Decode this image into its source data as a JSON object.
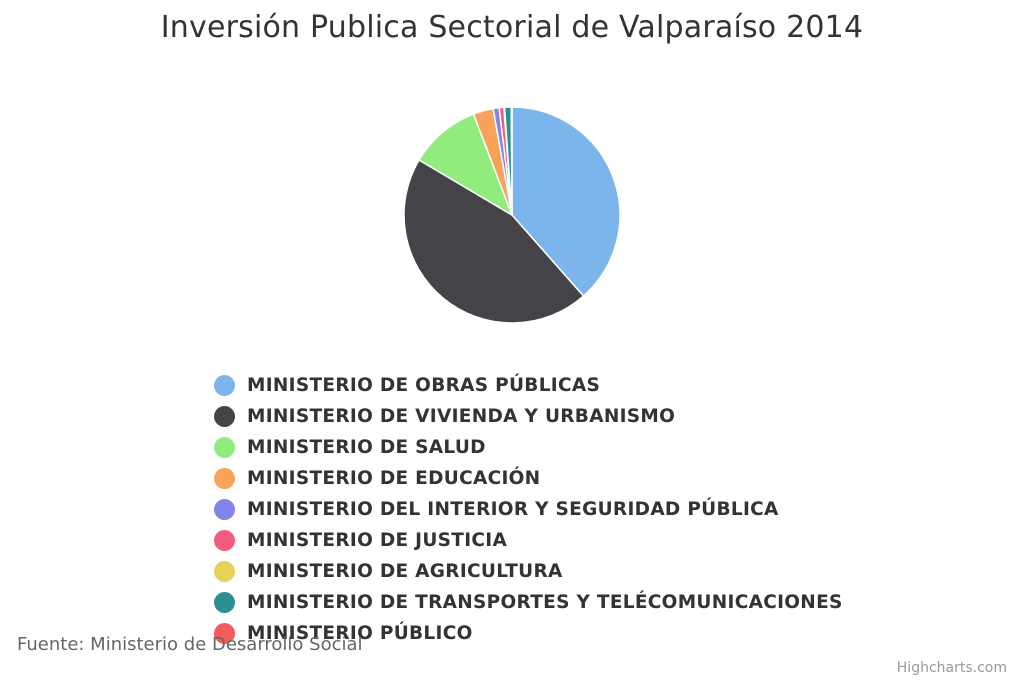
{
  "chart_data": {
    "type": "pie",
    "title": "Inversión Publica Sectorial de Valparaíso 2014",
    "series": [
      {
        "name": "",
        "data": [
          {
            "label": "MINISTERIO DE OBRAS PÚBLICAS",
            "value": 38.5,
            "color": "#7cb5ec"
          },
          {
            "label": "MINISTERIO DE VIVIENDA Y URBANISMO",
            "value": 45.0,
            "color": "#434348"
          },
          {
            "label": "MINISTERIO DE SALUD",
            "value": 10.7,
            "color": "#90ed7d"
          },
          {
            "label": "MINISTERIO DE EDUCACIÓN",
            "value": 3.0,
            "color": "#f7a35c"
          },
          {
            "label": "MINISTERIO DEL INTERIOR Y SEGURIDAD PÚBLICA",
            "value": 0.9,
            "color": "#8085e9"
          },
          {
            "label": "MINISTERIO DE JUSTICIA",
            "value": 0.7,
            "color": "#f15c80"
          },
          {
            "label": "MINISTERIO DE AGRICULTURA",
            "value": 0.1,
            "color": "#e4d354"
          },
          {
            "label": "MINISTERIO DE TRANSPORTES Y TELÉCOMUNICACIONES",
            "value": 1.0,
            "color": "#2b908f"
          },
          {
            "label": "MINISTERIO PÚBLICO",
            "value": 0.1,
            "color": "#f45b5b"
          }
        ]
      }
    ],
    "legend": {
      "position": "bottom-center",
      "layout": "vertical"
    },
    "source": "Fuente: Ministerio de Desarrollo Social",
    "credits": "Highcharts.com"
  }
}
